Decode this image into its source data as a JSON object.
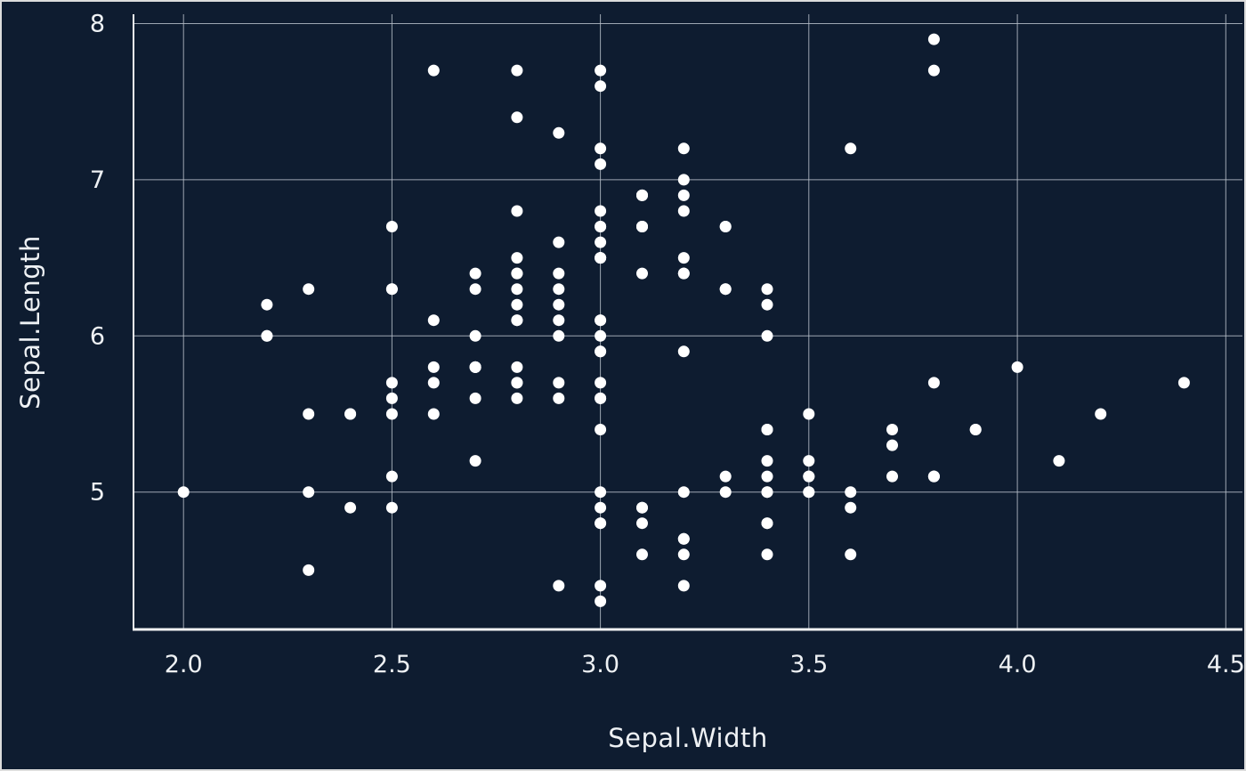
{
  "chart_data": {
    "type": "scatter",
    "title": "",
    "xlabel": "Sepal.Width",
    "ylabel": "Sepal.Length",
    "xlim": [
      1.88,
      4.54
    ],
    "ylim": [
      4.12,
      8.06
    ],
    "xticks": [
      2.0,
      2.5,
      3.0,
      3.5,
      4.0,
      4.5
    ],
    "xtick_labels": [
      "2.0",
      "2.5",
      "3.0",
      "3.5",
      "4.0",
      "4.5"
    ],
    "yticks": [
      5,
      6,
      7,
      8
    ],
    "ytick_labels": [
      "5",
      "6",
      "7",
      "8"
    ],
    "grid": true,
    "legend": false,
    "point_radius_px": 6.5,
    "colors": {
      "background": "#0e1c30",
      "point": "#ffffff",
      "grid": "#b7bfc9",
      "axis": "#f2f3f4",
      "text": "#eef1f4",
      "border": "#dcdcdc"
    },
    "x": [
      3.5,
      3.0,
      3.2,
      3.1,
      3.6,
      3.9,
      3.4,
      3.4,
      2.9,
      3.1,
      3.7,
      3.4,
      3.0,
      3.0,
      4.0,
      4.4,
      3.9,
      3.5,
      3.8,
      3.8,
      3.4,
      3.7,
      3.6,
      3.3,
      3.4,
      3.0,
      3.4,
      3.5,
      3.4,
      3.2,
      3.1,
      3.4,
      4.1,
      4.2,
      3.1,
      3.2,
      3.5,
      3.6,
      3.0,
      3.4,
      3.5,
      2.3,
      3.2,
      3.5,
      3.8,
      3.0,
      3.8,
      3.2,
      3.7,
      3.3,
      3.2,
      3.2,
      3.1,
      2.3,
      2.8,
      2.8,
      3.3,
      2.4,
      2.9,
      2.7,
      2.0,
      3.0,
      2.2,
      2.9,
      2.9,
      3.1,
      3.0,
      2.7,
      2.2,
      2.5,
      3.2,
      2.8,
      2.5,
      2.8,
      2.9,
      3.0,
      2.8,
      3.0,
      2.9,
      2.6,
      2.4,
      2.4,
      2.7,
      2.7,
      3.0,
      3.4,
      3.1,
      2.3,
      3.0,
      2.5,
      2.6,
      3.0,
      2.6,
      2.3,
      2.7,
      3.0,
      2.9,
      2.9,
      2.5,
      2.8,
      3.3,
      2.7,
      3.0,
      2.9,
      3.0,
      3.0,
      2.5,
      2.9,
      2.5,
      3.6,
      3.2,
      2.7,
      3.0,
      2.5,
      2.8,
      3.2,
      3.0,
      3.8,
      2.6,
      2.2,
      3.2,
      2.8,
      2.8,
      2.7,
      3.3,
      3.2,
      2.8,
      3.0,
      2.8,
      3.0,
      2.8,
      3.8,
      2.8,
      2.8,
      2.6,
      3.0,
      3.4,
      3.1,
      3.0,
      3.1,
      3.1,
      3.1,
      2.7,
      3.2,
      3.3,
      3.0,
      2.5,
      3.0,
      3.4,
      3.0
    ],
    "y": [
      5.1,
      4.9,
      4.7,
      4.6,
      5.0,
      5.4,
      4.6,
      5.0,
      4.4,
      4.9,
      5.4,
      4.8,
      4.8,
      4.3,
      5.8,
      5.7,
      5.4,
      5.1,
      5.7,
      5.1,
      5.4,
      5.1,
      4.6,
      5.1,
      4.8,
      5.0,
      5.0,
      5.2,
      5.2,
      4.7,
      4.8,
      5.4,
      5.2,
      5.5,
      4.9,
      5.0,
      5.5,
      4.9,
      4.4,
      5.1,
      5.0,
      4.5,
      4.4,
      5.0,
      5.1,
      4.8,
      5.1,
      4.6,
      5.3,
      5.0,
      7.0,
      6.4,
      6.9,
      5.5,
      6.5,
      5.7,
      6.3,
      4.9,
      6.6,
      5.2,
      5.0,
      5.9,
      6.0,
      6.1,
      5.6,
      6.7,
      5.6,
      5.8,
      6.2,
      5.6,
      5.9,
      6.1,
      6.3,
      6.1,
      6.4,
      6.6,
      6.8,
      6.7,
      6.0,
      5.7,
      5.5,
      5.5,
      5.8,
      6.0,
      5.4,
      6.0,
      6.7,
      6.3,
      5.6,
      5.5,
      5.5,
      6.1,
      5.8,
      5.0,
      5.6,
      5.7,
      5.7,
      6.2,
      5.1,
      5.7,
      6.3,
      5.8,
      7.1,
      6.3,
      6.5,
      7.6,
      4.9,
      7.3,
      6.7,
      7.2,
      6.5,
      6.4,
      6.8,
      5.7,
      5.8,
      6.4,
      6.5,
      7.7,
      7.7,
      6.0,
      6.9,
      5.6,
      7.7,
      6.3,
      6.7,
      7.2,
      6.2,
      6.1,
      6.4,
      7.2,
      7.4,
      7.9,
      6.4,
      6.3,
      6.1,
      7.7,
      6.3,
      6.4,
      6.0,
      6.9,
      6.7,
      6.9,
      5.8,
      6.8,
      6.7,
      6.7,
      6.3,
      6.5,
      6.2,
      5.9
    ]
  }
}
